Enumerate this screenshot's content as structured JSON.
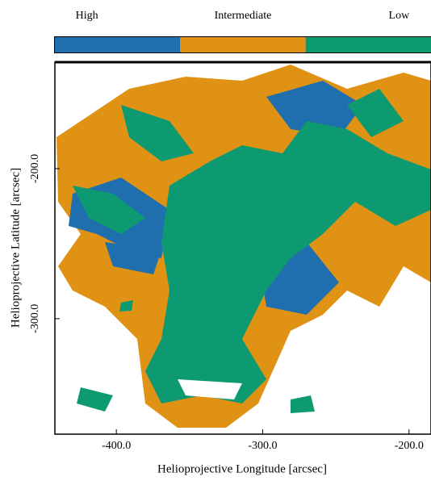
{
  "chart_data": {
    "type": "image",
    "xlabel": "Helioprojective Longitude [arcsec]",
    "ylabel": "Helioprojective Latitude [arcsec]",
    "xlim": [
      -442,
      -185
    ],
    "ylim": [
      -377,
      -129
    ],
    "xticks": [
      {
        "value": -400,
        "label": "-400.0"
      },
      {
        "value": -300,
        "label": "-300.0"
      },
      {
        "value": -200,
        "label": "-200.0"
      }
    ],
    "yticks": [
      {
        "value": -200,
        "label": "-200.0"
      },
      {
        "value": -300,
        "label": "-300.0"
      }
    ],
    "colorbar": {
      "categories": [
        "High",
        "Intermediate",
        "Low"
      ],
      "colors": [
        "#1f6fae",
        "#df9213",
        "#0d9a70"
      ]
    }
  }
}
